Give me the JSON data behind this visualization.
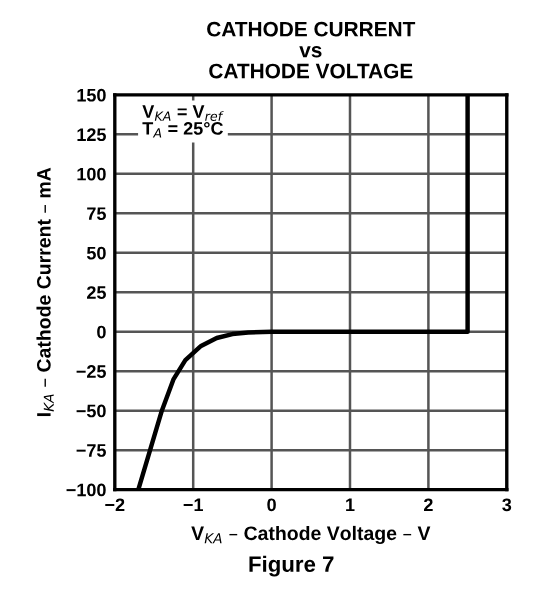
{
  "chart_data": {
    "type": "line",
    "title": "CATHODE CURRENT\nvs\nCATHODE VOLTAGE",
    "xlabel": "V$_{KA}$ – Cathode Voltage – V",
    "ylabel": "I$_{KA}$ – Cathode Current – mA",
    "annotations": [
      "V$_{KA}$ = V$_{ref}$\nT$_{A}$ = 25°C",
      "Figure 7"
    ],
    "series": [
      {
        "color": "#000000",
        "x": [
          -1.7,
          -1.55,
          -1.4,
          -1.25,
          -1.1,
          -0.9,
          -0.7,
          -0.5,
          -0.3,
          0,
          2.5,
          2.5
        ],
        "values": [
          -100,
          -75,
          -50,
          -30,
          -18,
          -9,
          -4,
          -1.5,
          -0.5,
          0,
          0,
          150
        ]
      }
    ],
    "xlim": [
      -2,
      3
    ],
    "xticks": [
      {
        "value": -2,
        "label": "−2"
      },
      {
        "value": -1,
        "label": "−1"
      },
      0,
      1,
      2,
      3
    ],
    "ylim": [
      -100,
      150
    ],
    "yticks": [
      {
        "value": -100,
        "label": "−100"
      },
      {
        "value": -75,
        "label": "−75"
      },
      {
        "value": -50,
        "label": "−50"
      },
      {
        "value": -25,
        "label": "−25"
      },
      0,
      25,
      50,
      75,
      100,
      125,
      150
    ],
    "grid": true,
    "marker": "none",
    "line_style": "solid",
    "legend": false
  }
}
